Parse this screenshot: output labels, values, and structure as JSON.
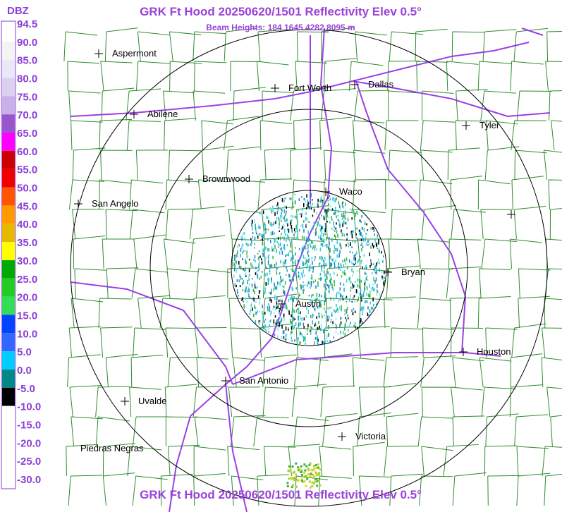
{
  "header": {
    "title": "GRK Ft Hood 20250620/1501 Reflectivity Elev 0.5°",
    "subtitle": "Beam Heights: 184 1645 4282 8095 m"
  },
  "legend": {
    "unit": "DBZ",
    "labels": [
      "94.5",
      "90.0",
      "85.0",
      "80.0",
      "75.0",
      "70.0",
      "65.0",
      "60.0",
      "55.0",
      "50.0",
      "45.0",
      "40.0",
      "35.0",
      "30.0",
      "25.0",
      "20.0",
      "15.0",
      "10.0",
      "5.0",
      "0.0",
      "-5.0",
      "-10.0",
      "-15.0",
      "-20.0",
      "-25.0",
      "-30.0"
    ]
  },
  "cities": [
    "Aspermont",
    "Abilene",
    "Fort Worth",
    "Dallas",
    "Tyler",
    "Brownwood",
    "San Angelo",
    "Waco",
    "Bryan",
    "Austin",
    "Houston",
    "San Antonio",
    "Uvalde",
    "Victoria",
    "Piedras Negras"
  ],
  "footer": {
    "title": "GRK Ft Hood 20250620/1501 Reflectivity Elev 0.5°"
  }
}
